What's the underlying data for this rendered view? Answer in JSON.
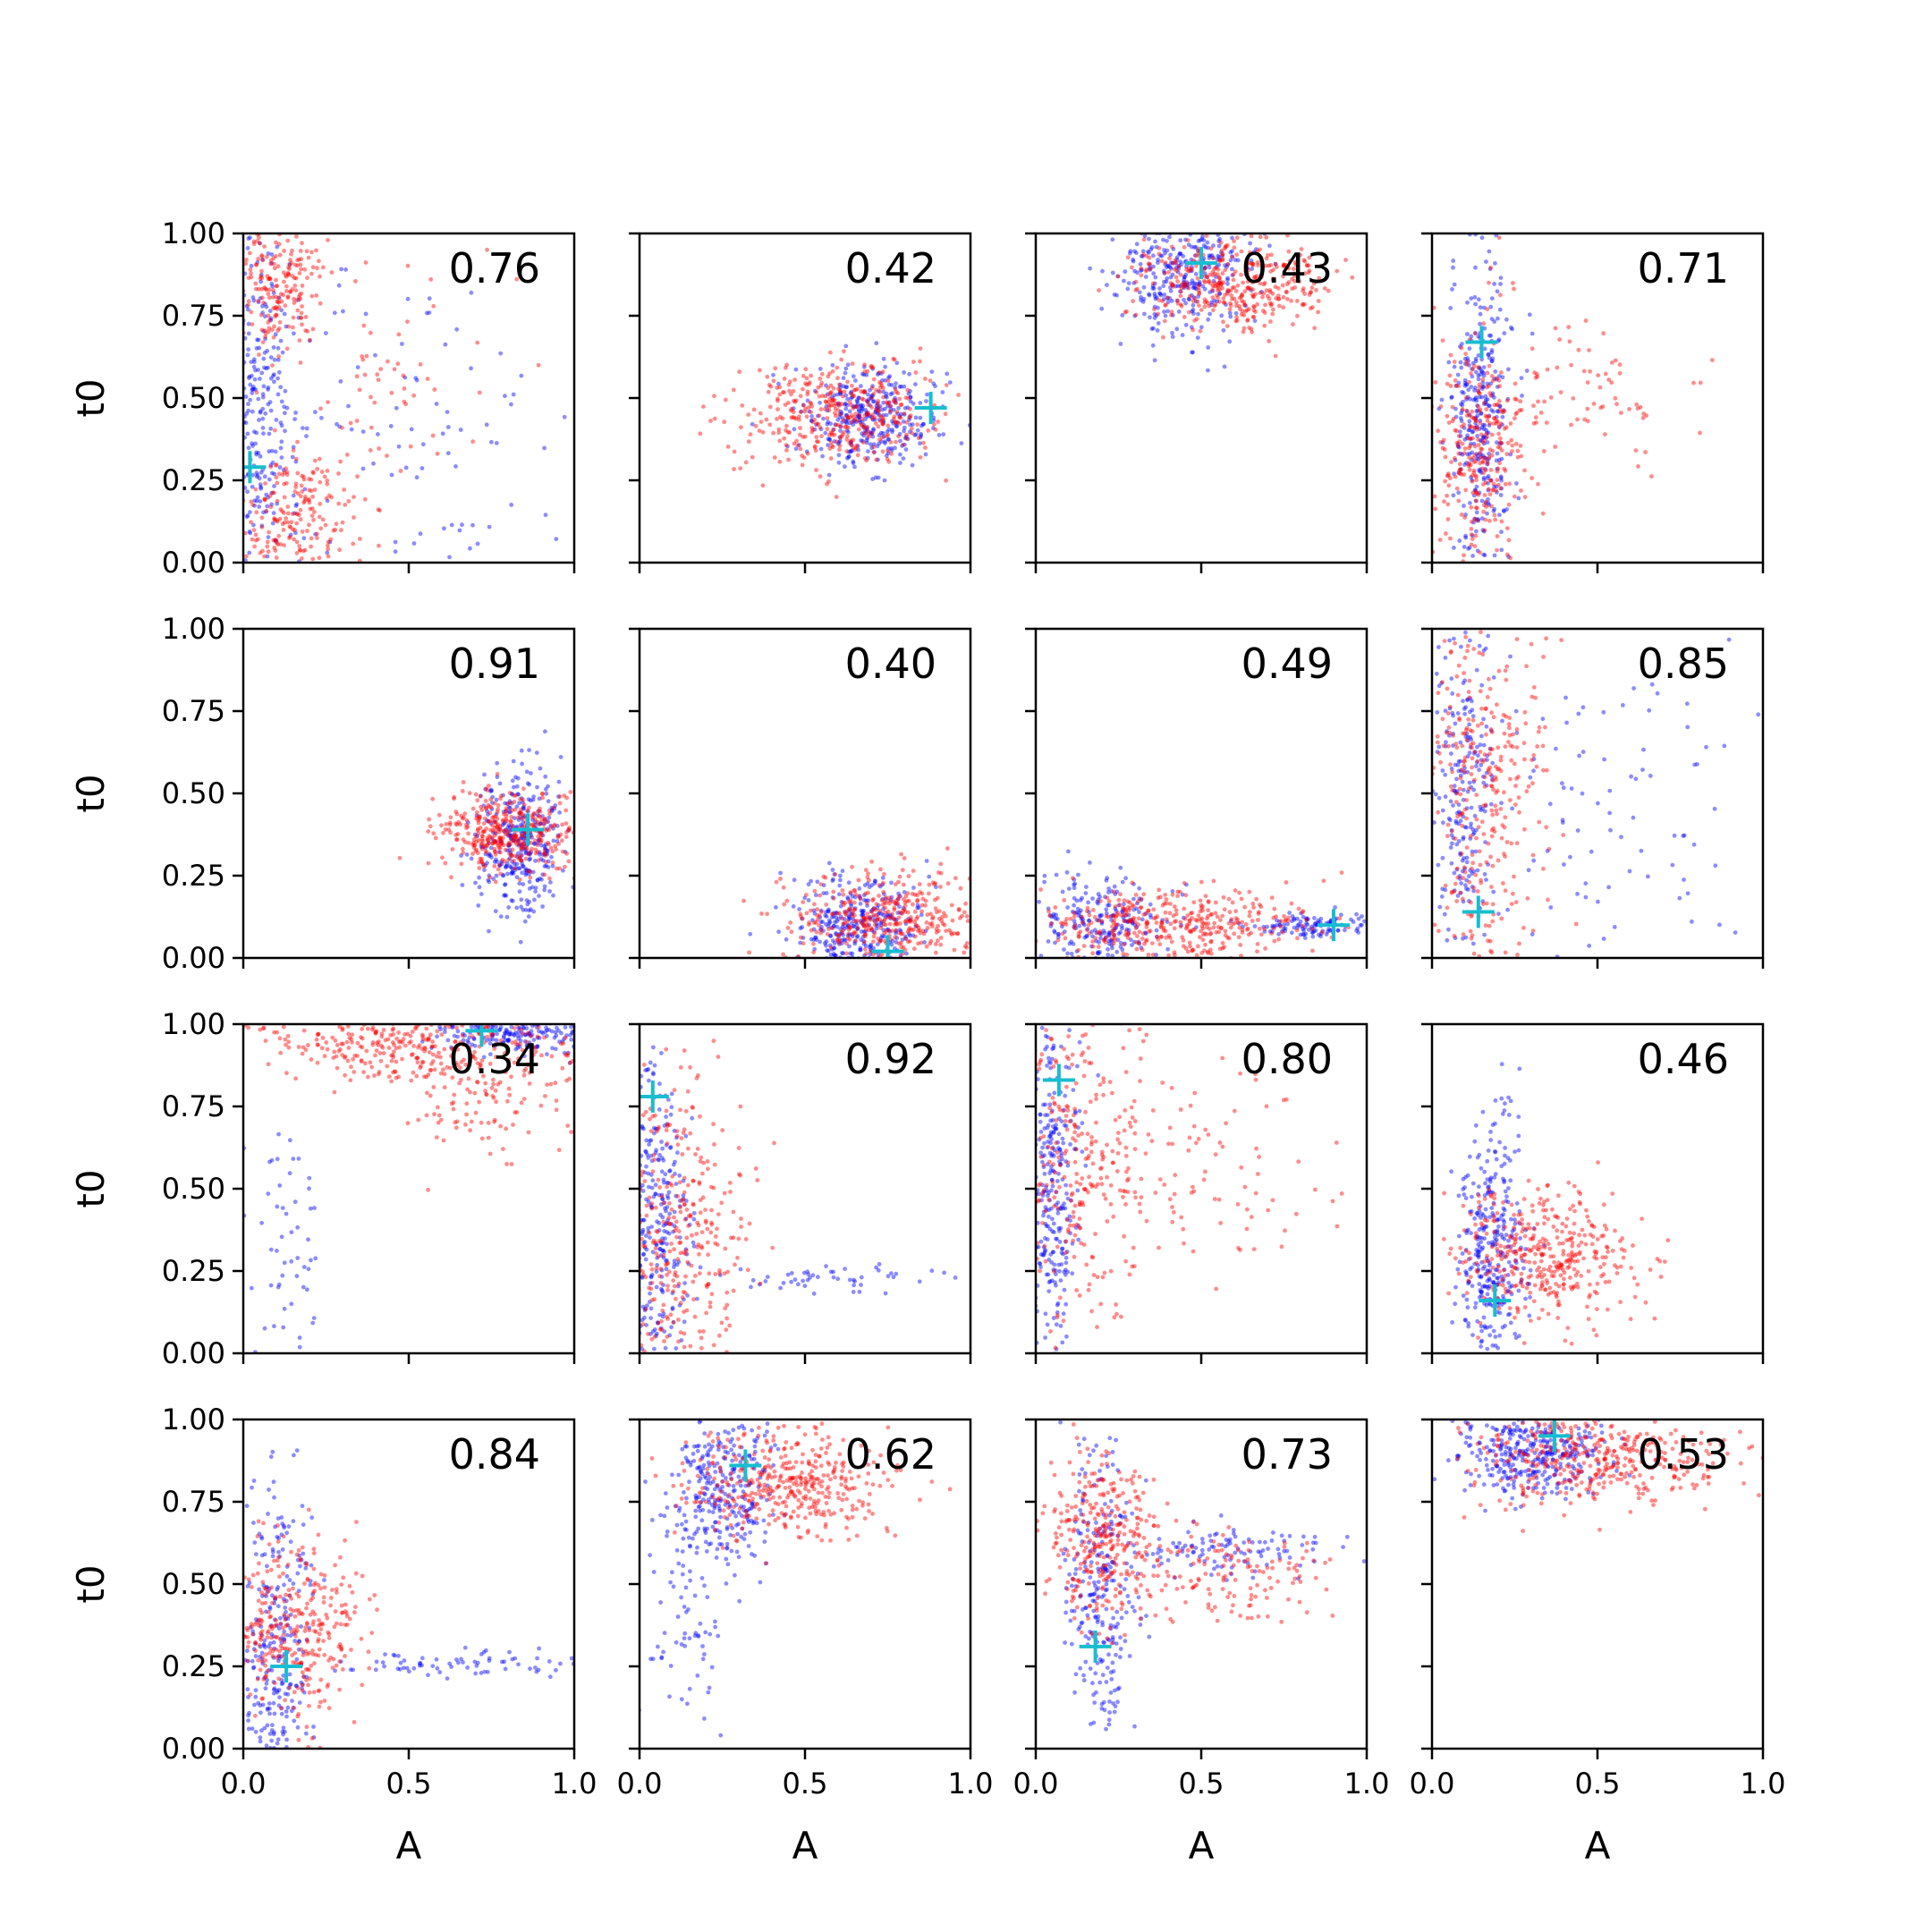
{
  "chart_data": {
    "type": "scatter",
    "layout": "4x4 grid of subplots",
    "xlabel": "A",
    "ylabel": "t0",
    "xlim": [
      0,
      1
    ],
    "ylim": [
      0,
      1
    ],
    "x_ticks": [
      "0.0",
      "0.5",
      "1.0"
    ],
    "y_ticks": [
      "0.00",
      "0.25",
      "0.50",
      "0.75",
      "1.00"
    ],
    "grid": false,
    "colors": {
      "series_a": "#0000ff",
      "series_b": "#ff0000",
      "marker": "#17becf"
    },
    "panels": [
      {
        "value": "0.76",
        "marker": [
          0.02,
          0.29
        ],
        "blue": [
          {
            "cx": 0.05,
            "cy": 0.45,
            "sx": 0.05,
            "sy": 0.3,
            "n": 260
          },
          {
            "cx": 0.4,
            "cy": 0.45,
            "sx": 0.3,
            "sy": 0.3,
            "n": 120
          }
        ],
        "red": [
          {
            "cx": 0.1,
            "cy": 0.85,
            "sx": 0.07,
            "sy": 0.1,
            "n": 200
          },
          {
            "cx": 0.15,
            "cy": 0.12,
            "sx": 0.1,
            "sy": 0.1,
            "n": 200
          },
          {
            "cx": 0.35,
            "cy": 0.5,
            "sx": 0.2,
            "sy": 0.25,
            "n": 80
          }
        ]
      },
      {
        "value": "0.42",
        "marker": [
          0.88,
          0.47
        ],
        "blue": [
          {
            "cx": 0.7,
            "cy": 0.45,
            "sx": 0.1,
            "sy": 0.08,
            "n": 350
          }
        ],
        "red": [
          {
            "cx": 0.6,
            "cy": 0.45,
            "sx": 0.15,
            "sy": 0.08,
            "n": 400
          }
        ]
      },
      {
        "value": "0.43",
        "marker": [
          0.5,
          0.91
        ],
        "blue": [
          {
            "cx": 0.45,
            "cy": 0.88,
            "sx": 0.1,
            "sy": 0.1,
            "n": 350
          }
        ],
        "red": [
          {
            "cx": 0.6,
            "cy": 0.85,
            "sx": 0.15,
            "sy": 0.07,
            "n": 400
          }
        ]
      },
      {
        "value": "0.71",
        "marker": [
          0.15,
          0.67
        ],
        "blue": [
          {
            "cx": 0.15,
            "cy": 0.45,
            "sx": 0.05,
            "sy": 0.25,
            "n": 350
          }
        ],
        "red": [
          {
            "cx": 0.15,
            "cy": 0.35,
            "sx": 0.07,
            "sy": 0.2,
            "n": 300
          },
          {
            "cx": 0.45,
            "cy": 0.5,
            "sx": 0.15,
            "sy": 0.1,
            "n": 80
          }
        ]
      },
      {
        "value": "0.91",
        "marker": [
          0.86,
          0.39
        ],
        "blue": [
          {
            "cx": 0.83,
            "cy": 0.35,
            "sx": 0.07,
            "sy": 0.12,
            "n": 350
          }
        ],
        "red": [
          {
            "cx": 0.8,
            "cy": 0.38,
            "sx": 0.1,
            "sy": 0.06,
            "n": 400
          }
        ]
      },
      {
        "value": "0.40",
        "marker": [
          0.75,
          0.02
        ],
        "blue": [
          {
            "cx": 0.65,
            "cy": 0.1,
            "sx": 0.1,
            "sy": 0.08,
            "n": 350
          }
        ],
        "red": [
          {
            "cx": 0.75,
            "cy": 0.12,
            "sx": 0.15,
            "sy": 0.07,
            "n": 400
          }
        ]
      },
      {
        "value": "0.49",
        "marker": [
          0.9,
          0.1
        ],
        "blue": [
          {
            "cx": 0.2,
            "cy": 0.1,
            "sx": 0.1,
            "sy": 0.08,
            "n": 250
          },
          {
            "cx": 0.85,
            "cy": 0.1,
            "sx": 0.1,
            "sy": 0.02,
            "n": 120
          }
        ],
        "red": [
          {
            "cx": 0.4,
            "cy": 0.1,
            "sx": 0.2,
            "sy": 0.06,
            "n": 400
          }
        ]
      },
      {
        "value": "0.85",
        "marker": [
          0.14,
          0.14
        ],
        "blue": [
          {
            "cx": 0.1,
            "cy": 0.5,
            "sx": 0.05,
            "sy": 0.3,
            "n": 250
          },
          {
            "cx": 0.5,
            "cy": 0.5,
            "sx": 0.25,
            "sy": 0.3,
            "n": 100
          }
        ],
        "red": [
          {
            "cx": 0.15,
            "cy": 0.5,
            "sx": 0.1,
            "sy": 0.3,
            "n": 350
          }
        ]
      },
      {
        "value": "0.34",
        "marker": [
          0.72,
          0.98
        ],
        "blue": [
          {
            "cx": 0.85,
            "cy": 0.97,
            "sx": 0.12,
            "sy": 0.03,
            "n": 220
          },
          {
            "cx": 0.12,
            "cy": 0.3,
            "sx": 0.06,
            "sy": 0.3,
            "n": 60
          }
        ],
        "red": [
          {
            "cx": 0.5,
            "cy": 0.95,
            "sx": 0.22,
            "sy": 0.06,
            "n": 350
          },
          {
            "cx": 0.75,
            "cy": 0.8,
            "sx": 0.12,
            "sy": 0.1,
            "n": 120
          }
        ]
      },
      {
        "value": "0.92",
        "marker": [
          0.04,
          0.78
        ],
        "blue": [
          {
            "cx": 0.05,
            "cy": 0.35,
            "sx": 0.05,
            "sy": 0.25,
            "n": 300
          },
          {
            "cx": 0.6,
            "cy": 0.23,
            "sx": 0.2,
            "sy": 0.02,
            "n": 50
          }
        ],
        "red": [
          {
            "cx": 0.12,
            "cy": 0.35,
            "sx": 0.1,
            "sy": 0.25,
            "n": 350
          }
        ]
      },
      {
        "value": "0.80",
        "marker": [
          0.07,
          0.83
        ],
        "blue": [
          {
            "cx": 0.05,
            "cy": 0.5,
            "sx": 0.04,
            "sy": 0.3,
            "n": 300
          }
        ],
        "red": [
          {
            "cx": 0.12,
            "cy": 0.6,
            "sx": 0.1,
            "sy": 0.25,
            "n": 300
          },
          {
            "cx": 0.45,
            "cy": 0.55,
            "sx": 0.2,
            "sy": 0.15,
            "n": 100
          }
        ]
      },
      {
        "value": "0.46",
        "marker": [
          0.19,
          0.16
        ],
        "blue": [
          {
            "cx": 0.18,
            "cy": 0.3,
            "sx": 0.05,
            "sy": 0.2,
            "n": 350
          }
        ],
        "red": [
          {
            "cx": 0.35,
            "cy": 0.3,
            "sx": 0.15,
            "sy": 0.1,
            "n": 400
          }
        ]
      },
      {
        "value": "0.84",
        "marker": [
          0.13,
          0.25
        ],
        "blue": [
          {
            "cx": 0.1,
            "cy": 0.3,
            "sx": 0.06,
            "sy": 0.25,
            "n": 300
          },
          {
            "cx": 0.65,
            "cy": 0.26,
            "sx": 0.2,
            "sy": 0.02,
            "n": 70
          }
        ],
        "red": [
          {
            "cx": 0.15,
            "cy": 0.35,
            "sx": 0.1,
            "sy": 0.15,
            "n": 350
          }
        ]
      },
      {
        "value": "0.62",
        "marker": [
          0.32,
          0.86
        ],
        "blue": [
          {
            "cx": 0.25,
            "cy": 0.8,
            "sx": 0.08,
            "sy": 0.12,
            "n": 300
          },
          {
            "cx": 0.15,
            "cy": 0.35,
            "sx": 0.06,
            "sy": 0.2,
            "n": 70
          }
        ],
        "red": [
          {
            "cx": 0.45,
            "cy": 0.8,
            "sx": 0.15,
            "sy": 0.08,
            "n": 400
          }
        ]
      },
      {
        "value": "0.73",
        "marker": [
          0.18,
          0.31
        ],
        "blue": [
          {
            "cx": 0.2,
            "cy": 0.5,
            "sx": 0.05,
            "sy": 0.25,
            "n": 250
          },
          {
            "cx": 0.55,
            "cy": 0.6,
            "sx": 0.2,
            "sy": 0.04,
            "n": 120
          }
        ],
        "red": [
          {
            "cx": 0.2,
            "cy": 0.65,
            "sx": 0.08,
            "sy": 0.12,
            "n": 300
          },
          {
            "cx": 0.55,
            "cy": 0.52,
            "sx": 0.18,
            "sy": 0.07,
            "n": 150
          }
        ]
      },
      {
        "value": "0.53",
        "marker": [
          0.37,
          0.95
        ],
        "blue": [
          {
            "cx": 0.3,
            "cy": 0.9,
            "sx": 0.12,
            "sy": 0.07,
            "n": 350
          }
        ],
        "red": [
          {
            "cx": 0.5,
            "cy": 0.88,
            "sx": 0.2,
            "sy": 0.07,
            "n": 400
          }
        ]
      }
    ]
  }
}
